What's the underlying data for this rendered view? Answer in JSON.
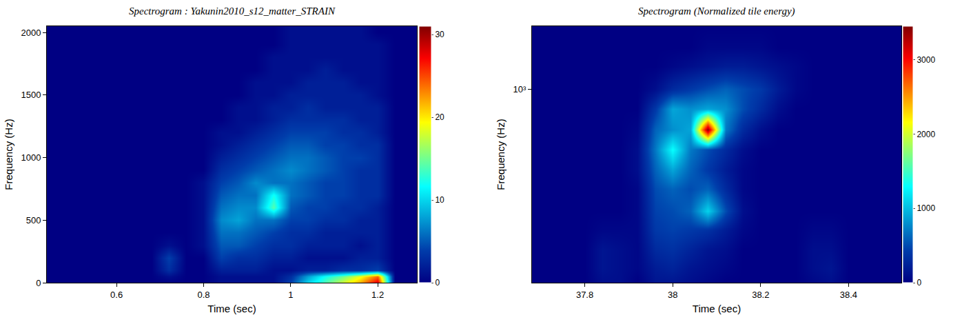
{
  "chart_data": [
    {
      "type": "heatmap",
      "title": "Spectrogram : Yakunin2010_s12_matter_STRAIN",
      "x_label": "Time (sec)",
      "y_label": "Frequency (Hz)",
      "color": "Jet",
      "grid": false,
      "xlim": [
        0.44,
        1.29
      ],
      "ylim": [
        0,
        2050
      ],
      "xticks": [
        0.6,
        0.8,
        1,
        1.2
      ],
      "yticks": [
        0,
        500,
        1000,
        1500,
        2000
      ],
      "zlim": [
        0,
        31
      ],
      "zticks": [
        0,
        10,
        20,
        30
      ],
      "x": [
        0.44,
        0.48,
        0.52,
        0.56,
        0.6,
        0.64,
        0.68,
        0.72,
        0.76,
        0.8,
        0.84,
        0.88,
        0.92,
        0.96,
        1.0,
        1.04,
        1.08,
        1.12,
        1.16,
        1.2,
        1.24,
        1.28
      ],
      "y": [
        0,
        50,
        100,
        200,
        300,
        400,
        500,
        600,
        700,
        800,
        900,
        1000,
        1100,
        1200,
        1300,
        1400,
        1500,
        1600,
        1700,
        1800,
        1900,
        2000
      ],
      "z": [
        [
          0,
          0,
          0,
          0,
          0,
          0,
          0,
          0,
          0,
          0,
          1,
          1,
          1,
          1,
          4,
          10,
          14,
          18,
          22,
          28,
          0,
          0
        ],
        [
          0,
          0,
          0,
          0,
          0,
          0,
          0,
          1,
          0,
          0,
          1,
          1,
          1,
          1,
          3,
          8,
          12,
          15,
          19,
          24,
          0,
          0
        ],
        [
          0,
          0,
          0,
          0,
          0,
          0,
          0,
          3,
          0,
          0,
          2,
          2,
          2,
          1,
          1,
          2,
          2,
          3,
          3,
          4,
          0,
          0
        ],
        [
          0,
          0,
          0,
          0,
          0,
          0,
          0,
          4,
          0,
          0,
          4,
          3,
          3,
          2,
          2,
          1,
          1,
          1,
          2,
          2,
          0,
          0
        ],
        [
          0,
          0,
          0,
          0,
          0,
          0,
          0,
          1,
          0,
          1,
          5,
          5,
          4,
          3,
          3,
          2,
          2,
          2,
          1,
          2,
          0,
          0
        ],
        [
          0,
          0,
          0,
          0,
          0,
          0,
          0,
          0,
          0,
          1,
          6,
          6,
          5,
          4,
          3,
          3,
          2,
          2,
          2,
          2,
          0,
          0
        ],
        [
          0,
          0,
          0,
          0,
          0,
          0,
          0,
          0,
          0,
          1,
          7,
          8,
          6,
          6,
          4,
          4,
          3,
          3,
          2,
          2,
          0,
          0
        ],
        [
          0,
          0,
          0,
          0,
          0,
          0,
          0,
          0,
          0,
          1,
          6,
          7,
          7,
          14,
          5,
          4,
          4,
          3,
          3,
          2,
          0,
          0
        ],
        [
          0,
          0,
          0,
          0,
          0,
          0,
          0,
          0,
          0,
          1,
          5,
          6,
          6,
          12,
          6,
          5,
          4,
          4,
          3,
          3,
          0,
          0
        ],
        [
          0,
          0,
          0,
          0,
          0,
          0,
          0,
          0,
          0,
          1,
          4,
          5,
          7,
          6,
          6,
          5,
          4,
          4,
          3,
          3,
          0,
          0
        ],
        [
          0,
          0,
          0,
          0,
          0,
          0,
          0,
          0,
          0,
          0,
          3,
          4,
          5,
          6,
          7,
          6,
          5,
          4,
          3,
          3,
          0,
          0
        ],
        [
          0,
          0,
          0,
          0,
          0,
          0,
          0,
          0,
          0,
          0,
          2,
          3,
          4,
          5,
          6,
          6,
          5,
          4,
          4,
          3,
          0,
          0
        ],
        [
          0,
          0,
          0,
          0,
          0,
          0,
          0,
          0,
          0,
          0,
          1,
          2,
          3,
          4,
          5,
          5,
          4,
          4,
          3,
          3,
          0,
          0
        ],
        [
          0,
          0,
          0,
          0,
          0,
          0,
          0,
          0,
          0,
          0,
          1,
          1,
          2,
          3,
          4,
          4,
          4,
          3,
          3,
          2,
          0,
          0
        ],
        [
          0,
          0,
          0,
          0,
          0,
          0,
          0,
          0,
          0,
          0,
          0,
          1,
          1,
          2,
          3,
          3,
          3,
          3,
          2,
          2,
          0,
          0
        ],
        [
          0,
          0,
          0,
          0,
          0,
          0,
          0,
          0,
          0,
          0,
          0,
          1,
          1,
          2,
          2,
          3,
          2,
          2,
          2,
          2,
          0,
          0
        ],
        [
          0,
          0,
          0,
          0,
          0,
          0,
          0,
          0,
          0,
          0,
          0,
          0,
          1,
          1,
          2,
          2,
          2,
          2,
          2,
          1,
          0,
          0
        ],
        [
          0,
          0,
          0,
          0,
          0,
          0,
          0,
          0,
          0,
          0,
          0,
          0,
          1,
          1,
          1,
          2,
          2,
          2,
          1,
          1,
          0,
          0
        ],
        [
          0,
          0,
          0,
          0,
          0,
          0,
          0,
          0,
          0,
          0,
          0,
          0,
          0,
          1,
          1,
          1,
          2,
          1,
          1,
          1,
          0,
          0
        ],
        [
          0,
          0,
          0,
          0,
          0,
          0,
          0,
          0,
          0,
          0,
          0,
          0,
          0,
          1,
          1,
          1,
          1,
          1,
          1,
          1,
          0,
          0
        ],
        [
          0,
          0,
          0,
          0,
          0,
          0,
          0,
          0,
          0,
          0,
          0,
          0,
          0,
          0,
          1,
          1,
          1,
          1,
          1,
          1,
          0,
          0
        ],
        [
          0,
          0,
          0,
          0,
          0,
          0,
          0,
          0,
          0,
          0,
          0,
          0,
          0,
          0,
          1,
          1,
          1,
          1,
          1,
          0,
          0,
          0
        ]
      ]
    },
    {
      "type": "heatmap",
      "title": "Spectrogram (Normalized tile energy)",
      "x_label": "Time (sec)",
      "y_label": "Frequency (Hz)",
      "color": "Jet",
      "grid": false,
      "log": "y",
      "xlim": [
        37.68,
        38.52
      ],
      "ylim": [
        110,
        2048
      ],
      "xticks": [
        37.8,
        38,
        38.2,
        38.4
      ],
      "yticks": [
        {
          "value": 1000,
          "label": "10³"
        }
      ],
      "zlim": [
        0,
        3450
      ],
      "zticks": [
        0,
        1000,
        2000,
        3000
      ],
      "x": [
        37.68,
        37.72,
        37.76,
        37.8,
        37.84,
        37.88,
        37.92,
        37.96,
        38.0,
        38.04,
        38.08,
        38.12,
        38.16,
        38.2,
        38.24,
        38.28,
        38.32,
        38.36,
        38.4,
        38.44,
        38.48,
        38.52
      ],
      "y": [
        110,
        130,
        160,
        200,
        250,
        320,
        400,
        500,
        630,
        800,
        1000,
        1300,
        1600,
        2048
      ],
      "z": [
        [
          0,
          0,
          0,
          0,
          100,
          100,
          0,
          150,
          150,
          100,
          50,
          0,
          0,
          0,
          0,
          0,
          50,
          100,
          0,
          0,
          0,
          0
        ],
        [
          0,
          0,
          0,
          0,
          150,
          100,
          50,
          200,
          250,
          150,
          100,
          50,
          0,
          0,
          0,
          0,
          100,
          150,
          0,
          0,
          0,
          0
        ],
        [
          0,
          0,
          0,
          0,
          150,
          100,
          50,
          300,
          350,
          250,
          150,
          100,
          0,
          0,
          0,
          0,
          100,
          100,
          0,
          0,
          0,
          0
        ],
        [
          0,
          0,
          0,
          0,
          50,
          50,
          50,
          400,
          450,
          400,
          350,
          200,
          50,
          0,
          0,
          0,
          50,
          50,
          0,
          0,
          0,
          0
        ],
        [
          0,
          0,
          0,
          0,
          0,
          0,
          50,
          450,
          500,
          600,
          1100,
          500,
          100,
          0,
          0,
          0,
          0,
          0,
          0,
          0,
          0,
          0
        ],
        [
          0,
          0,
          0,
          0,
          0,
          0,
          50,
          500,
          600,
          500,
          600,
          300,
          50,
          0,
          0,
          0,
          0,
          0,
          0,
          0,
          0,
          0
        ],
        [
          0,
          0,
          0,
          0,
          0,
          0,
          100,
          600,
          900,
          600,
          400,
          200,
          50,
          0,
          0,
          0,
          0,
          0,
          0,
          0,
          0,
          0
        ],
        [
          0,
          0,
          0,
          0,
          0,
          0,
          100,
          700,
          1300,
          700,
          500,
          300,
          100,
          0,
          0,
          0,
          0,
          0,
          0,
          0,
          0,
          0
        ],
        [
          0,
          0,
          0,
          0,
          0,
          0,
          50,
          600,
          800,
          900,
          3400,
          700,
          300,
          100,
          0,
          0,
          0,
          0,
          0,
          0,
          0,
          0
        ],
        [
          0,
          0,
          0,
          0,
          0,
          0,
          0,
          400,
          900,
          800,
          900,
          800,
          500,
          300,
          100,
          0,
          0,
          0,
          0,
          0,
          0,
          0
        ],
        [
          0,
          0,
          0,
          0,
          0,
          0,
          0,
          100,
          300,
          400,
          500,
          600,
          500,
          400,
          200,
          50,
          0,
          0,
          0,
          0,
          0,
          0
        ],
        [
          0,
          0,
          0,
          0,
          0,
          0,
          0,
          0,
          50,
          100,
          150,
          200,
          200,
          150,
          100,
          50,
          0,
          0,
          0,
          0,
          0,
          0
        ],
        [
          0,
          0,
          0,
          0,
          0,
          0,
          0,
          0,
          0,
          0,
          50,
          50,
          50,
          50,
          0,
          0,
          0,
          0,
          0,
          0,
          0,
          0
        ],
        [
          0,
          0,
          0,
          0,
          0,
          0,
          0,
          0,
          0,
          0,
          0,
          0,
          0,
          0,
          0,
          0,
          0,
          0,
          0,
          0,
          0,
          0
        ]
      ]
    }
  ]
}
